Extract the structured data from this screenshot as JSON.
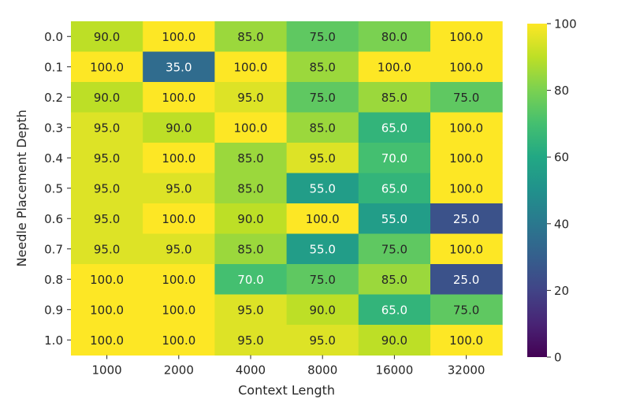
{
  "chart_data": {
    "type": "heatmap",
    "xlabel": "Context Length",
    "ylabel": "Needle Placement Depth",
    "x_categories": [
      "1000",
      "2000",
      "4000",
      "8000",
      "16000",
      "32000"
    ],
    "y_categories": [
      "0.0",
      "0.1",
      "0.2",
      "0.3",
      "0.4",
      "0.5",
      "0.6",
      "0.7",
      "0.8",
      "0.9",
      "1.0"
    ],
    "values": [
      [
        90,
        100,
        85,
        75,
        80,
        100
      ],
      [
        100,
        35,
        100,
        85,
        100,
        100
      ],
      [
        90,
        100,
        95,
        75,
        85,
        75
      ],
      [
        95,
        90,
        100,
        85,
        65,
        100
      ],
      [
        95,
        100,
        85,
        95,
        70,
        100
      ],
      [
        95,
        95,
        85,
        55,
        65,
        100
      ],
      [
        95,
        100,
        90,
        100,
        55,
        25
      ],
      [
        95,
        95,
        85,
        55,
        75,
        100
      ],
      [
        100,
        100,
        70,
        75,
        85,
        25
      ],
      [
        100,
        100,
        95,
        90,
        65,
        75
      ],
      [
        100,
        100,
        95,
        95,
        90,
        100
      ]
    ],
    "value_format": "0.0",
    "colormap": "viridis",
    "vmin": 0,
    "vmax": 100,
    "colorbar_ticks": [
      0,
      20,
      40,
      60,
      80,
      100
    ],
    "grid": false
  }
}
